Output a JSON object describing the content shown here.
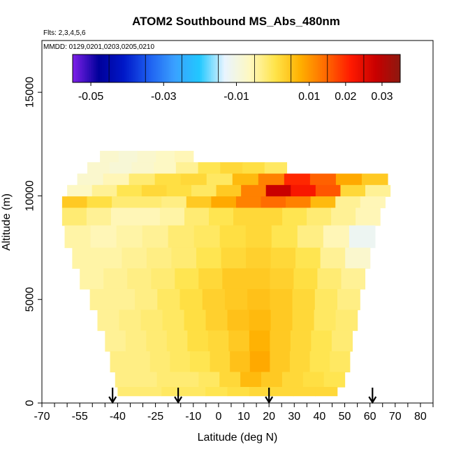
{
  "chart_data": {
    "type": "heatmap",
    "title": "ATOM2 Southbound MS_Abs_480nm",
    "flights_label": "Flts: 2,3,4,5,6",
    "dates_label": "MMDD: 0129,0201,0203,0205,0210",
    "xlabel": "Latitude (deg N)",
    "ylabel": "Altitude (m)",
    "xlim": [
      -70,
      85
    ],
    "ylim": [
      0,
      17500
    ],
    "x_tick_labels": [
      "-70",
      "-55",
      "-40",
      "-25",
      "-10",
      "0",
      "10",
      "20",
      "30",
      "40",
      "50",
      "60",
      "70",
      "80"
    ],
    "x_tick_values": [
      -70,
      -55,
      -40,
      -25,
      -10,
      0,
      10,
      20,
      30,
      40,
      50,
      60,
      70,
      80
    ],
    "y_tick_labels": [
      "0",
      "5000",
      "10000",
      "15000"
    ],
    "y_tick_values": [
      0,
      5000,
      10000,
      15000
    ],
    "colorbar": {
      "labels": [
        "-0.05",
        "-0.03",
        "-0.01",
        "0.01",
        "0.02",
        "0.03"
      ],
      "label_values": [
        -0.05,
        -0.03,
        -0.01,
        0.01,
        0.02,
        0.03
      ],
      "range": [
        -0.055,
        0.035
      ],
      "colors": [
        "#7a1fe6",
        "#00009a",
        "#0018c8",
        "#1e5ff0",
        "#3aa0ff",
        "#22c8ff",
        "#e8f4ff",
        "#fff8c0",
        "#ffe44a",
        "#ffb000",
        "#ff6a00",
        "#ff1a00",
        "#c80000",
        "#8a1a10"
      ]
    },
    "airport_arrows_lat": [
      -42,
      -16,
      20,
      61
    ],
    "profile_rows": [
      {
        "alt": 11900,
        "lat_start": -47,
        "lat_end": -10,
        "values": [
          -0.008,
          -0.009,
          -0.008,
          -0.007,
          -0.006
        ]
      },
      {
        "alt": 11350,
        "lat_start": -52,
        "lat_end": 27,
        "values": [
          -0.008,
          -0.009,
          -0.008,
          -0.007,
          -0.004,
          0.0,
          0.002,
          0.001,
          -0.001
        ]
      },
      {
        "alt": 10800,
        "lat_start": -56,
        "lat_end": 67,
        "values": [
          -0.008,
          -0.006,
          -0.002,
          0.001,
          0.002,
          -0.001,
          0.006,
          0.012,
          0.02,
          0.015,
          0.008,
          0.004
        ]
      },
      {
        "alt": 10250,
        "lat_start": -60,
        "lat_end": 68,
        "values": [
          -0.007,
          -0.004,
          0.0,
          0.002,
          0.001,
          -0.001,
          0.004,
          0.012,
          0.028,
          0.022,
          0.016,
          0.002,
          -0.004
        ]
      },
      {
        "alt": 9700,
        "lat_start": -62,
        "lat_end": 66,
        "values": [
          0.004,
          0.001,
          -0.002,
          -0.002,
          -0.003,
          0.004,
          0.008,
          0.012,
          0.014,
          0.012,
          0.006,
          -0.004,
          -0.006
        ]
      },
      {
        "alt": 9150,
        "lat_start": -62,
        "lat_end": 64,
        "values": [
          -0.002,
          -0.004,
          -0.006,
          -0.006,
          -0.005,
          -0.002,
          0.0,
          0.002,
          0.002,
          0.0,
          -0.002,
          -0.004,
          -0.006
        ]
      },
      {
        "alt": 8000,
        "lat_start": -61,
        "lat_end": 62,
        "values": [
          -0.005,
          -0.006,
          -0.005,
          -0.004,
          -0.002,
          -0.001,
          0.001,
          0.002,
          0.0,
          -0.003,
          -0.006,
          -0.012
        ]
      },
      {
        "alt": 7000,
        "lat_start": -58,
        "lat_end": 60,
        "values": [
          -0.005,
          -0.005,
          -0.004,
          -0.003,
          -0.002,
          0.0,
          0.002,
          0.003,
          0.002,
          0.0,
          -0.004,
          -0.008
        ]
      },
      {
        "alt": 6000,
        "lat_start": -55,
        "lat_end": 58,
        "values": [
          -0.005,
          -0.004,
          -0.003,
          -0.002,
          0.0,
          0.002,
          0.004,
          0.004,
          0.003,
          0.001,
          -0.002,
          -0.004
        ]
      },
      {
        "alt": 5000,
        "lat_start": -51,
        "lat_end": 56,
        "values": [
          -0.004,
          -0.004,
          -0.003,
          -0.001,
          0.001,
          0.003,
          0.004,
          0.005,
          0.004,
          0.002,
          -0.001,
          -0.003
        ]
      },
      {
        "alt": 4000,
        "lat_start": -48,
        "lat_end": 55,
        "values": [
          -0.004,
          -0.003,
          -0.002,
          -0.001,
          0.001,
          0.003,
          0.005,
          0.006,
          0.004,
          0.002,
          -0.001,
          -0.002
        ]
      },
      {
        "alt": 3000,
        "lat_start": -45,
        "lat_end": 53,
        "values": [
          -0.004,
          -0.003,
          -0.002,
          -0.001,
          0.001,
          0.002,
          0.004,
          0.007,
          0.004,
          0.002,
          0.0,
          -0.002
        ]
      },
      {
        "alt": 2000,
        "lat_start": -43,
        "lat_end": 52,
        "values": [
          -0.003,
          -0.003,
          -0.002,
          -0.001,
          0.0,
          0.002,
          0.005,
          0.008,
          0.004,
          0.002,
          0.0,
          -0.001
        ]
      },
      {
        "alt": 1000,
        "lat_start": -41,
        "lat_end": 50,
        "values": [
          -0.003,
          -0.003,
          -0.002,
          -0.002,
          -0.001,
          0.002,
          0.006,
          0.004,
          0.002,
          0.001,
          0.0
        ]
      },
      {
        "alt": 550,
        "lat_start": -40,
        "lat_end": 47,
        "values": [
          -0.002,
          -0.002,
          -0.001,
          -0.001,
          0.0,
          0.001,
          0.002,
          0.002,
          0.002,
          0.002
        ]
      }
    ]
  }
}
